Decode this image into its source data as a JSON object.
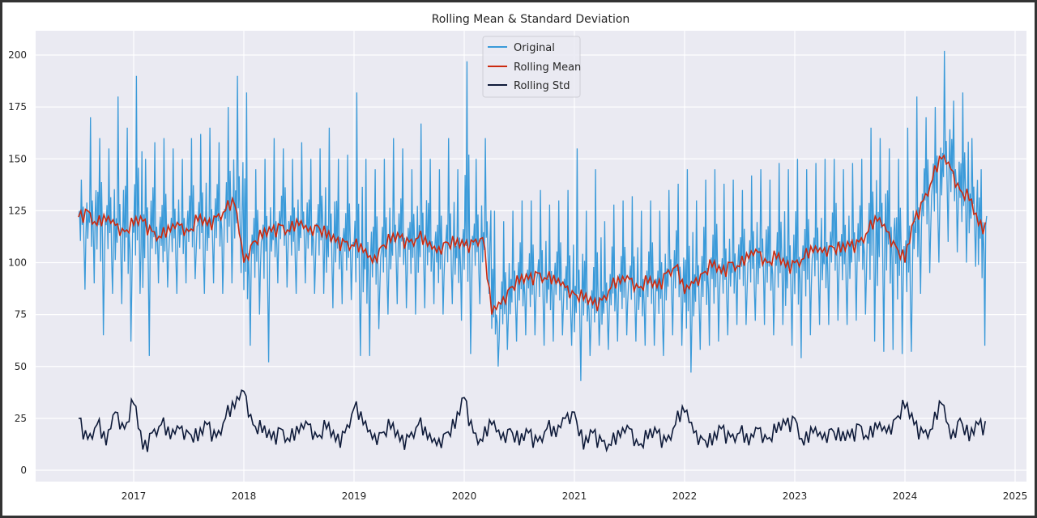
{
  "chart_data": {
    "type": "line",
    "title": "Rolling Mean & Standard Deviation",
    "xlabel": "",
    "ylabel": "",
    "xlim": [
      "2016-02",
      "2025-02"
    ],
    "ylim": [
      -5.5,
      211.7
    ],
    "grid": true,
    "legend_placement": "top-center",
    "x_ticks": [
      "2017",
      "2018",
      "2019",
      "2020",
      "2021",
      "2022",
      "2023",
      "2024",
      "2025"
    ],
    "y_ticks": [
      0,
      25,
      50,
      75,
      100,
      125,
      150,
      175,
      200
    ],
    "x": [
      "2016-07",
      "2016-08",
      "2016-09",
      "2016-10",
      "2016-11",
      "2016-12",
      "2017-01",
      "2017-02",
      "2017-03",
      "2017-04",
      "2017-05",
      "2017-06",
      "2017-07",
      "2017-08",
      "2017-09",
      "2017-10",
      "2017-11",
      "2017-12",
      "2018-01",
      "2018-02",
      "2018-03",
      "2018-04",
      "2018-05",
      "2018-06",
      "2018-07",
      "2018-08",
      "2018-09",
      "2018-10",
      "2018-11",
      "2018-12",
      "2019-01",
      "2019-02",
      "2019-03",
      "2019-04",
      "2019-05",
      "2019-06",
      "2019-07",
      "2019-08",
      "2019-09",
      "2019-10",
      "2019-11",
      "2019-12",
      "2020-01",
      "2020-02",
      "2020-03",
      "2020-04",
      "2020-05",
      "2020-06",
      "2020-07",
      "2020-08",
      "2020-09",
      "2020-10",
      "2020-11",
      "2020-12",
      "2021-01",
      "2021-02",
      "2021-03",
      "2021-04",
      "2021-05",
      "2021-06",
      "2021-07",
      "2021-08",
      "2021-09",
      "2021-10",
      "2021-11",
      "2021-12",
      "2022-01",
      "2022-02",
      "2022-03",
      "2022-04",
      "2022-05",
      "2022-06",
      "2022-07",
      "2022-08",
      "2022-09",
      "2022-10",
      "2022-11",
      "2022-12",
      "2023-01",
      "2023-02",
      "2023-03",
      "2023-04",
      "2023-05",
      "2023-06",
      "2023-07",
      "2023-08",
      "2023-09",
      "2023-10",
      "2023-11",
      "2023-12",
      "2024-01",
      "2024-02",
      "2024-03",
      "2024-04",
      "2024-05",
      "2024-06",
      "2024-07",
      "2024-08",
      "2024-09"
    ],
    "series": [
      {
        "name": "Original",
        "color": "#3a9ad9",
        "monthly_high": [
          140,
          170,
          160,
          155,
          180,
          165,
          190,
          150,
          158,
          160,
          155,
          150,
          160,
          162,
          165,
          158,
          175,
          190,
          182,
          145,
          150,
          160,
          155,
          150,
          158,
          150,
          155,
          165,
          150,
          152,
          182,
          150,
          145,
          150,
          160,
          155,
          145,
          167,
          150,
          145,
          160,
          145,
          197,
          150,
          160,
          125,
          120,
          125,
          130,
          130,
          135,
          128,
          130,
          135,
          155,
          125,
          145,
          120,
          128,
          130,
          132,
          125,
          130,
          125,
          135,
          138,
          145,
          130,
          140,
          145,
          138,
          140,
          135,
          142,
          145,
          140,
          148,
          145,
          150,
          145,
          148,
          150,
          150,
          145,
          148,
          150,
          165,
          160,
          155,
          150,
          165,
          180,
          170,
          175,
          202,
          178,
          182,
          160,
          145
        ],
        "monthly_low": [
          87,
          90,
          65,
          85,
          80,
          62,
          85,
          55,
          90,
          88,
          85,
          90,
          92,
          85,
          90,
          85,
          90,
          95,
          60,
          75,
          52,
          90,
          88,
          85,
          90,
          85,
          85,
          78,
          80,
          82,
          55,
          55,
          68,
          75,
          80,
          78,
          75,
          78,
          80,
          75,
          80,
          72,
          56,
          80,
          85,
          50,
          58,
          62,
          65,
          65,
          60,
          62,
          65,
          60,
          43,
          55,
          60,
          58,
          62,
          65,
          62,
          60,
          60,
          55,
          65,
          60,
          47,
          58,
          60,
          62,
          65,
          70,
          70,
          72,
          70,
          65,
          70,
          60,
          54,
          65,
          70,
          70,
          72,
          70,
          72,
          75,
          62,
          57,
          58,
          56,
          57,
          85,
          95,
          100,
          110,
          105,
          100,
          98,
          60
        ]
      },
      {
        "name": "Rolling Mean",
        "color": "#cc2a0f",
        "values": [
          122,
          125,
          118,
          120,
          118,
          115,
          118,
          120,
          115,
          112,
          115,
          118,
          115,
          120,
          118,
          122,
          125,
          128,
          100,
          110,
          112,
          115,
          118,
          115,
          118,
          115,
          118,
          112,
          110,
          110,
          108,
          105,
          100,
          108,
          110,
          112,
          110,
          112,
          108,
          105,
          110,
          108,
          108,
          110,
          112,
          75,
          80,
          88,
          90,
          92,
          95,
          92,
          90,
          88,
          85,
          82,
          80,
          82,
          88,
          90,
          92,
          88,
          90,
          88,
          95,
          98,
          85,
          90,
          95,
          98,
          95,
          100,
          98,
          102,
          105,
          100,
          102,
          98,
          100,
          102,
          105,
          105,
          108,
          105,
          108,
          110,
          115,
          120,
          115,
          108,
          100,
          120,
          130,
          140,
          150,
          145,
          135,
          130,
          118
        ]
      },
      {
        "name": "Rolling Std",
        "color": "#0f1b3a",
        "values": [
          25,
          15,
          22,
          12,
          28,
          20,
          32,
          10,
          18,
          22,
          15,
          20,
          18,
          14,
          22,
          16,
          25,
          30,
          38,
          22,
          18,
          15,
          20,
          14,
          18,
          22,
          16,
          20,
          14,
          18,
          30,
          22,
          15,
          18,
          20,
          14,
          16,
          22,
          15,
          12,
          18,
          20,
          35,
          18,
          14,
          22,
          15,
          20,
          12,
          18,
          14,
          20,
          16,
          25,
          28,
          10,
          18,
          14,
          12,
          16,
          20,
          12,
          15,
          18,
          14,
          22,
          28,
          18,
          15,
          12,
          20,
          16,
          18,
          12,
          20,
          15,
          18,
          22,
          25,
          12,
          18,
          15,
          20,
          14,
          16,
          22,
          15,
          20,
          18,
          25,
          30,
          22,
          18,
          20,
          32,
          15,
          25,
          14,
          22
        ]
      }
    ],
    "background": "#eaeaf2",
    "grid_color": "#ffffff"
  }
}
